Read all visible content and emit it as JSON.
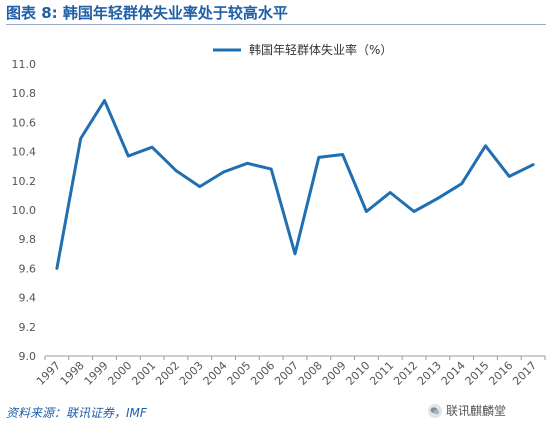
{
  "header": {
    "title": "图表 8:  韩国年轻群体失业率处于较高水平"
  },
  "footer": {
    "source": "资料来源：联讯证券，IMF",
    "watermark": "联讯麒麟堂",
    "watermark_icon": "wechat-icon"
  },
  "colors": {
    "line": "#1f6fb2",
    "title": "#1f5fa8",
    "axis": "#999999",
    "tick_text": "#555555"
  },
  "chart_data": {
    "type": "line",
    "title": "",
    "xlabel": "",
    "ylabel": "",
    "legend_position": "top-center",
    "grid": false,
    "ylim": [
      9.0,
      11.0
    ],
    "yticks": [
      "9.0",
      "9.2",
      "9.4",
      "9.6",
      "9.8",
      "10.0",
      "10.2",
      "10.4",
      "10.6",
      "10.8",
      "11.0"
    ],
    "categories": [
      "1997",
      "1998",
      "1999",
      "2000",
      "2001",
      "2002",
      "2003",
      "2004",
      "2005",
      "2006",
      "2007",
      "2008",
      "2009",
      "2010",
      "2011",
      "2012",
      "2013",
      "2014",
      "2015",
      "2016",
      "2017"
    ],
    "series": [
      {
        "name": "韩国年轻群体失业率（%）",
        "values": [
          9.6,
          10.49,
          10.75,
          10.37,
          10.43,
          10.27,
          10.16,
          10.26,
          10.32,
          10.28,
          9.7,
          10.36,
          10.38,
          9.99,
          10.12,
          9.99,
          10.08,
          10.18,
          10.44,
          10.23,
          10.31
        ]
      }
    ]
  }
}
